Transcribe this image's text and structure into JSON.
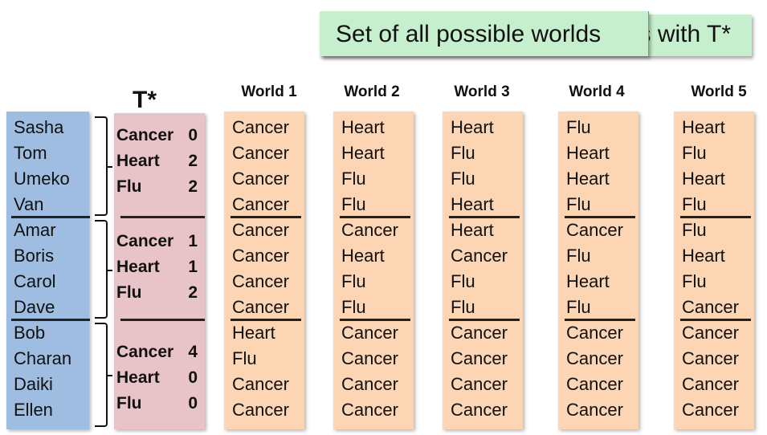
{
  "banner": {
    "text": "Set of all possible worlds with T*",
    "front_text": "Set of all possible worlds"
  },
  "tstar_title": "T*",
  "names": [
    "Sasha",
    "Tom",
    "Umeko",
    "Van",
    "Amar",
    "Boris",
    "Carol",
    "Dave",
    "Bob",
    "Charan",
    "Daiki",
    "Ellen"
  ],
  "tstar_groups": [
    [
      {
        "label": "Cancer",
        "value": "0"
      },
      {
        "label": "Heart",
        "value": "2"
      },
      {
        "label": "Flu",
        "value": "2"
      }
    ],
    [
      {
        "label": "Cancer",
        "value": "1"
      },
      {
        "label": "Heart",
        "value": "1"
      },
      {
        "label": "Flu",
        "value": "2"
      }
    ],
    [
      {
        "label": "Cancer",
        "value": "4"
      },
      {
        "label": "Heart",
        "value": "0"
      },
      {
        "label": "Flu",
        "value": "0"
      }
    ]
  ],
  "worlds": [
    {
      "title": "World 1",
      "cells": [
        "Cancer",
        "Cancer",
        "Cancer",
        "Cancer",
        "Cancer",
        "Cancer",
        "Cancer",
        "Cancer",
        "Heart",
        "Flu",
        "Cancer",
        "Cancer"
      ]
    },
    {
      "title": "World 2",
      "cells": [
        "Heart",
        "Heart",
        "Flu",
        "Flu",
        "Cancer",
        "Heart",
        "Flu",
        "Flu",
        "Cancer",
        "Cancer",
        "Cancer",
        "Cancer"
      ]
    },
    {
      "title": "World 3",
      "cells": [
        "Heart",
        "Flu",
        "Flu",
        "Heart",
        "Heart",
        "Cancer",
        "Flu",
        "Flu",
        "Cancer",
        "Cancer",
        "Cancer",
        "Cancer"
      ]
    },
    {
      "title": "World 4",
      "cells": [
        "Flu",
        "Heart",
        "Heart",
        "Flu",
        "Cancer",
        "Flu",
        "Heart",
        "Flu",
        "Cancer",
        "Cancer",
        "Cancer",
        "Cancer"
      ]
    },
    {
      "title": "World 5",
      "cells": [
        "Heart",
        "Flu",
        "Heart",
        "Flu",
        "Flu",
        "Heart",
        "Flu",
        "Cancer",
        "Cancer",
        "Cancer",
        "Cancer",
        "Cancer"
      ]
    }
  ],
  "colors": {
    "banner": "#c6efce",
    "names": "#9fbde0",
    "tstar": "#e8c4c8",
    "world": "#fcd5b5"
  }
}
